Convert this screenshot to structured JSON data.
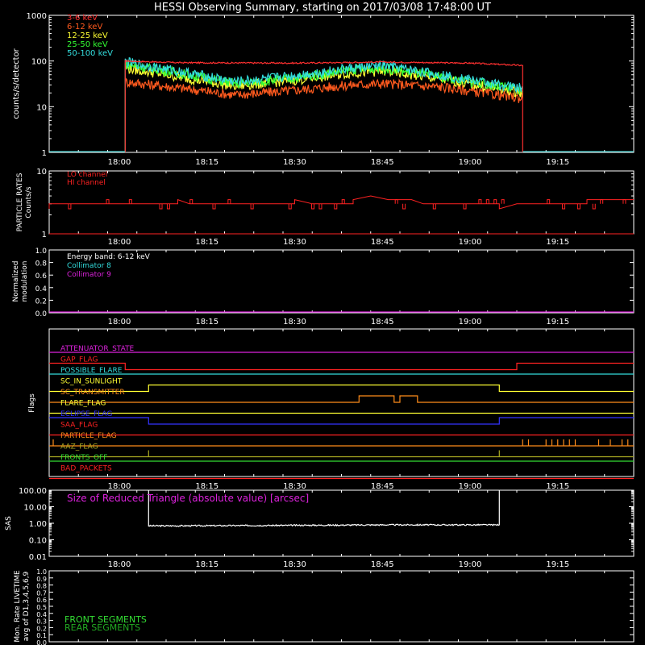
{
  "title": "HESSI Observing Summary, starting on 2017/03/08 17:48:00 UT",
  "time_ticks": [
    "18:00",
    "18:15",
    "18:30",
    "18:45",
    "19:00",
    "19:15"
  ],
  "colors": {
    "bg": "#000000",
    "axis": "#ffffff",
    "c3_6": "#ff3030",
    "c6_12": "#ff5a1e",
    "c12_25": "#ffff33",
    "c25_50": "#33ff33",
    "c50_100": "#33dddd",
    "orange": "#ff8c1a",
    "magenta": "#dd22dd",
    "red": "#ff2222",
    "cyan": "#33dddd",
    "blue": "#3333ff",
    "yellow": "#ffff33",
    "olive": "#aaaa22",
    "green": "#33dd33",
    "darkgreen": "#22aa22"
  },
  "chart_data": [
    {
      "type": "line",
      "ylabel": "counts/s/detector",
      "yscale": "log",
      "ylim": [
        1,
        1000
      ],
      "ytick_labels": [
        "1",
        "10",
        "100",
        "1000"
      ],
      "x_range": [
        "17:48",
        "19:28"
      ],
      "legend": "top-left",
      "series": [
        {
          "name": "3-6 keV",
          "points": [
            [
              "18:01",
              1
            ],
            [
              "18:01",
              100
            ],
            [
              "18:10",
              92
            ],
            [
              "18:30",
              90
            ],
            [
              "18:45",
              95
            ],
            [
              "19:00",
              90
            ],
            [
              "19:09",
              80
            ],
            [
              "19:09",
              1
            ]
          ]
        },
        {
          "name": "6-12 keV",
          "points": [
            [
              "18:01",
              1
            ],
            [
              "18:01",
              35
            ],
            [
              "18:10",
              26
            ],
            [
              "18:20",
              18
            ],
            [
              "18:30",
              23
            ],
            [
              "18:40",
              30
            ],
            [
              "18:45",
              32
            ],
            [
              "18:55",
              27
            ],
            [
              "19:05",
              18
            ],
            [
              "19:09",
              15
            ]
          ]
        },
        {
          "name": "12-25 keV",
          "points": [
            [
              "18:01",
              1
            ],
            [
              "18:01",
              70
            ],
            [
              "18:10",
              45
            ],
            [
              "18:20",
              28
            ],
            [
              "18:30",
              38
            ],
            [
              "18:40",
              55
            ],
            [
              "18:45",
              60
            ],
            [
              "18:55",
              40
            ],
            [
              "19:05",
              25
            ],
            [
              "19:09",
              20
            ]
          ]
        },
        {
          "name": "25-50 keV",
          "points": [
            [
              "18:01",
              1
            ],
            [
              "18:01",
              85
            ],
            [
              "18:10",
              55
            ],
            [
              "18:20",
              32
            ],
            [
              "18:30",
              42
            ],
            [
              "18:40",
              65
            ],
            [
              "18:45",
              70
            ],
            [
              "18:55",
              45
            ],
            [
              "19:05",
              28
            ],
            [
              "19:09",
              22
            ]
          ]
        },
        {
          "name": "50-100 keV",
          "points": [
            [
              "18:01",
              1
            ],
            [
              "18:01",
              95
            ],
            [
              "18:10",
              60
            ],
            [
              "18:20",
              35
            ],
            [
              "18:30",
              48
            ],
            [
              "18:40",
              70
            ],
            [
              "18:45",
              80
            ],
            [
              "18:55",
              50
            ],
            [
              "19:05",
              30
            ],
            [
              "19:09",
              25
            ]
          ]
        }
      ]
    },
    {
      "type": "line",
      "ylabel": "PARTICLE RATES",
      "ylabel2": "Counts/s",
      "yscale": "log",
      "ylim": [
        1,
        10
      ],
      "ytick_labels": [
        "1",
        "10"
      ],
      "series": [
        {
          "name": "LO channel"
        },
        {
          "name": "HI channel",
          "points": [
            [
              "17:48",
              2.5
            ],
            [
              "17:48",
              3
            ],
            [
              "18:10",
              3
            ],
            [
              "18:10",
              3.5
            ],
            [
              "18:12",
              3
            ],
            [
              "18:30",
              3
            ],
            [
              "18:30",
              3.5
            ],
            [
              "18:33",
              3
            ],
            [
              "18:40",
              3
            ],
            [
              "18:40",
              3.5
            ],
            [
              "18:43",
              4
            ],
            [
              "18:46",
              3.5
            ],
            [
              "18:50",
              3.5
            ],
            [
              "18:52",
              3
            ],
            [
              "19:05",
              3
            ],
            [
              "19:05",
              2.5
            ],
            [
              "19:08",
              3
            ],
            [
              "19:20",
              3
            ],
            [
              "19:20",
              3.5
            ],
            [
              "19:28",
              3.5
            ]
          ]
        }
      ]
    },
    {
      "type": "line",
      "ylabel": "Normalized",
      "ylabel2": "modulation",
      "ylim": [
        0,
        1
      ],
      "ytick_labels": [
        "0.0",
        "0.2",
        "0.4",
        "0.6",
        "0.8",
        "1.0"
      ],
      "annotation": "Energy band: 6-12 keV",
      "series": [
        {
          "name": "Collimator 8"
        },
        {
          "name": "Collimator 9",
          "points": [
            [
              "17:48",
              0
            ],
            [
              "19:28",
              0
            ]
          ]
        }
      ]
    },
    {
      "type": "line",
      "ylabel": "Flags",
      "series": [
        {
          "name": "ATTENUATOR_STATE",
          "color": "magenta",
          "points": [
            [
              "17:48",
              0
            ],
            [
              "19:28",
              0
            ]
          ]
        },
        {
          "name": "GAP_FLAG",
          "color": "red",
          "points": [
            [
              "17:48",
              0
            ],
            [
              "18:01",
              0
            ],
            [
              "18:01",
              -1
            ],
            [
              "19:08",
              -1
            ],
            [
              "19:08",
              0
            ],
            [
              "19:28",
              0
            ]
          ]
        },
        {
          "name": "POSSIBLE_FLARE",
          "color": "cyan",
          "points": [
            [
              "17:48",
              0
            ],
            [
              "19:28",
              0
            ]
          ]
        },
        {
          "name": "SC_IN_SUNLIGHT",
          "color": "yellow",
          "points": [
            [
              "17:48",
              -1
            ],
            [
              "18:05",
              -1
            ],
            [
              "18:05",
              0
            ],
            [
              "19:05",
              0
            ],
            [
              "19:05",
              -1
            ],
            [
              "19:28",
              -1
            ]
          ]
        },
        {
          "name": "SC_TRANSMITTER",
          "color": "orange",
          "points": [
            [
              "17:48",
              -1
            ],
            [
              "18:41",
              -1
            ],
            [
              "18:41",
              0
            ],
            [
              "18:47",
              0
            ],
            [
              "18:47",
              -1
            ],
            [
              "18:48",
              -1
            ],
            [
              "18:48",
              0
            ],
            [
              "18:51",
              0
            ],
            [
              "18:51",
              -1
            ],
            [
              "19:28",
              -1
            ]
          ]
        },
        {
          "name": "FLARE_FLAG",
          "color": "yellow",
          "points": [
            [
              "17:48",
              -1
            ],
            [
              "19:28",
              -1
            ]
          ]
        },
        {
          "name": "ECLIPSE_FLAG",
          "color": "blue",
          "points": [
            [
              "17:48",
              0
            ],
            [
              "18:05",
              0
            ],
            [
              "18:05",
              -1
            ],
            [
              "19:05",
              -1
            ],
            [
              "19:05",
              0
            ],
            [
              "19:28",
              0
            ]
          ]
        },
        {
          "name": "SAA_FLAG",
          "color": "red",
          "points": [
            [
              "17:48",
              -1
            ],
            [
              "19:28",
              -1
            ]
          ]
        },
        {
          "name": "PARTICLE_FLAG",
          "color": "orange",
          "points": [
            [
              "17:48",
              -1
            ],
            [
              "19:28",
              -1
            ]
          ]
        },
        {
          "name": "AAZ_FLAG",
          "color": "olive",
          "points": [
            [
              "17:48",
              -1
            ],
            [
              "18:05",
              -1
            ],
            [
              "18:05",
              0
            ],
            [
              "18:05",
              -1
            ],
            [
              "19:05",
              -1
            ],
            [
              "19:05",
              0
            ],
            [
              "19:05",
              -1
            ],
            [
              "19:28",
              -1
            ]
          ]
        },
        {
          "name": "FRONTS_OFF",
          "color": "green",
          "points": [
            [
              "17:48",
              0
            ],
            [
              "19:28",
              0
            ]
          ]
        },
        {
          "name": "BAD_PACKETS",
          "color": "red",
          "points": [
            [
              "17:48",
              -1
            ],
            [
              "19:28",
              -1
            ]
          ]
        }
      ]
    },
    {
      "type": "line",
      "ylabel": "SAS",
      "yscale": "log",
      "ylim": [
        0.01,
        100
      ],
      "ytick_labels": [
        "0.01",
        "0.10",
        "1.00",
        "10.00",
        "100.00"
      ],
      "annotation": "Size of Reduced Triangle (absolute value) [arcsec]",
      "series": [
        {
          "points": [
            [
              "18:05",
              100
            ],
            [
              "18:05",
              0.7
            ],
            [
              "18:10",
              0.7
            ],
            [
              "18:30",
              0.75
            ],
            [
              "18:45",
              0.8
            ],
            [
              "19:00",
              0.8
            ],
            [
              "19:05",
              0.8
            ],
            [
              "19:05",
              100
            ]
          ]
        }
      ]
    },
    {
      "type": "line",
      "ylabel": "Mon. Rate LIVETIME",
      "ylabel2": "avg of D1,3,4,5,6,9",
      "ylim": [
        0,
        1
      ],
      "ytick_labels": [
        "0.0",
        "0.1",
        "0.2",
        "0.3",
        "0.4",
        "0.5",
        "0.6",
        "0.7",
        "0.8",
        "0.9",
        "1.0"
      ],
      "series": [
        {
          "name": "FRONT SEGMENTS"
        },
        {
          "name": "REAR SEGMENTS"
        }
      ]
    }
  ]
}
